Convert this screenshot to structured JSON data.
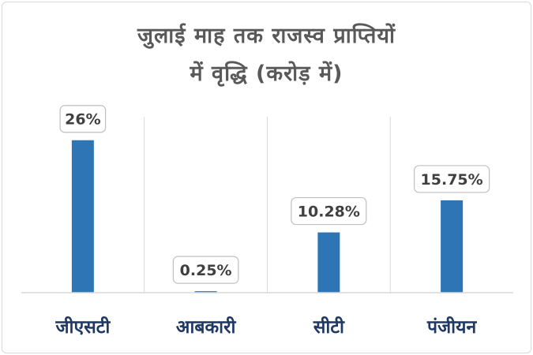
{
  "chart_data": {
    "type": "bar",
    "title_lines": [
      "जुलाई माह तक राजस्व प्राप्तियों",
      "में वृद्धि (करोड़ में)"
    ],
    "categories": [
      "जीएसटी",
      "आबकारी",
      "सीटी",
      "पंजीयन"
    ],
    "values": [
      26,
      0.25,
      10.28,
      15.75
    ],
    "data_labels": [
      "26%",
      "0.25%",
      "10.28%",
      "15.75%"
    ],
    "ylim": [
      0,
      30
    ],
    "grid": true,
    "legend": "none",
    "bar_color": "#2e75b6",
    "label_color": "#1f3864"
  }
}
